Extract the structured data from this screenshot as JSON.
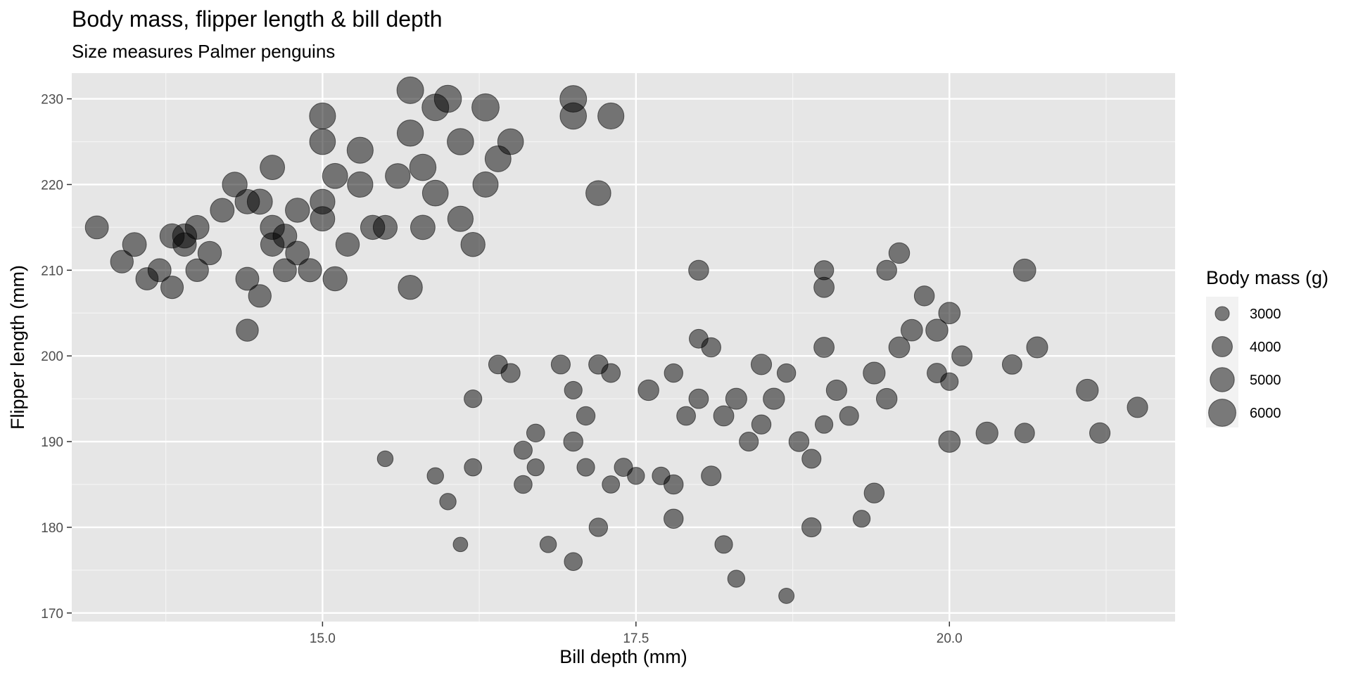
{
  "chart_data": {
    "type": "scatter",
    "title": "Body mass, flipper length & bill depth",
    "subtitle": "Size measures Palmer penguins",
    "xlabel": "Bill depth (mm)",
    "ylabel": "Flipper length (mm)",
    "xlim": [
      13.0,
      21.8
    ],
    "ylim": [
      169,
      233
    ],
    "x_ticks": [
      15.0,
      17.5,
      20.0
    ],
    "x_tick_labels": [
      "15.0",
      "17.5",
      "20.0"
    ],
    "y_ticks": [
      170,
      180,
      190,
      200,
      210,
      220,
      230
    ],
    "y_tick_labels": [
      "170",
      "180",
      "190",
      "200",
      "210",
      "220",
      "230"
    ],
    "grid": true,
    "point_color": "#000000",
    "point_alpha": 0.5,
    "panel_background": "#e6e6e6",
    "size_legend": {
      "title": "Body mass (g)",
      "placement": "right",
      "breaks": [
        3000,
        4000,
        5000,
        6000
      ],
      "labels": [
        "3000",
        "4000",
        "5000",
        "6000"
      ]
    },
    "size_range_mass": [
      2700,
      6300
    ],
    "points": [
      [
        13.2,
        215,
        4700
      ],
      [
        13.4,
        211,
        4600
      ],
      [
        13.5,
        213,
        4900
      ],
      [
        13.6,
        209,
        4500
      ],
      [
        13.7,
        210,
        4700
      ],
      [
        13.8,
        208,
        4550
      ],
      [
        13.9,
        214,
        5000
      ],
      [
        13.9,
        213,
        4800
      ],
      [
        14.0,
        215,
        4900
      ],
      [
        14.1,
        212,
        4800
      ],
      [
        14.0,
        210,
        4600
      ],
      [
        14.2,
        217,
        4900
      ],
      [
        14.3,
        220,
        5200
      ],
      [
        14.4,
        218,
        5100
      ],
      [
        14.4,
        209,
        4700
      ],
      [
        14.5,
        218,
        5300
      ],
      [
        14.6,
        215,
        5000
      ],
      [
        14.6,
        222,
        5100
      ],
      [
        14.7,
        210,
        4700
      ],
      [
        14.8,
        212,
        4900
      ],
      [
        14.9,
        210,
        4750
      ],
      [
        15.0,
        216,
        5100
      ],
      [
        15.0,
        218,
        5200
      ],
      [
        15.0,
        228,
        5600
      ],
      [
        15.1,
        221,
        5300
      ],
      [
        15.1,
        209,
        5000
      ],
      [
        15.2,
        213,
        4800
      ],
      [
        15.3,
        220,
        5400
      ],
      [
        15.4,
        215,
        5000
      ],
      [
        15.5,
        215,
        4950
      ],
      [
        15.6,
        221,
        5200
      ],
      [
        15.7,
        231,
        5800
      ],
      [
        15.7,
        226,
        5650
      ],
      [
        15.8,
        222,
        5700
      ],
      [
        15.8,
        215,
        5100
      ],
      [
        15.9,
        219,
        5500
      ],
      [
        15.9,
        229,
        5800
      ],
      [
        16.0,
        230,
        5950
      ],
      [
        16.1,
        225,
        5700
      ],
      [
        16.1,
        216,
        5400
      ],
      [
        16.2,
        213,
        5000
      ],
      [
        16.3,
        229,
        6000
      ],
      [
        16.3,
        220,
        5350
      ],
      [
        16.4,
        223,
        5550
      ],
      [
        16.5,
        225,
        5500
      ],
      [
        17.0,
        230,
        5800
      ],
      [
        17.0,
        228,
        5700
      ],
      [
        17.2,
        219,
        5250
      ],
      [
        17.3,
        228,
        5600
      ],
      [
        15.7,
        208,
        5000
      ],
      [
        14.5,
        207,
        4600
      ],
      [
        14.4,
        203,
        4450
      ],
      [
        15.0,
        225,
        5500
      ],
      [
        14.8,
        217,
        5000
      ],
      [
        15.3,
        224,
        5600
      ],
      [
        14.6,
        213,
        4800
      ],
      [
        13.8,
        214,
        5050
      ],
      [
        14.7,
        214,
        4900
      ],
      [
        15.5,
        188,
        3200
      ],
      [
        15.9,
        186,
        3300
      ],
      [
        16.0,
        183,
        3300
      ],
      [
        16.1,
        178,
        3050
      ],
      [
        16.2,
        187,
        3450
      ],
      [
        16.2,
        195,
        3500
      ],
      [
        16.4,
        199,
        3700
      ],
      [
        16.5,
        198,
        3750
      ],
      [
        16.6,
        189,
        3600
      ],
      [
        16.6,
        185,
        3550
      ],
      [
        16.7,
        191,
        3550
      ],
      [
        16.7,
        187,
        3400
      ],
      [
        16.8,
        178,
        3300
      ],
      [
        16.9,
        199,
        3750
      ],
      [
        17.0,
        196,
        3500
      ],
      [
        17.0,
        190,
        3800
      ],
      [
        17.1,
        193,
        3650
      ],
      [
        17.1,
        187,
        3500
      ],
      [
        17.2,
        199,
        3800
      ],
      [
        17.2,
        180,
        3650
      ],
      [
        17.3,
        198,
        3700
      ],
      [
        17.3,
        185,
        3450
      ],
      [
        17.4,
        187,
        3600
      ],
      [
        17.5,
        186,
        3400
      ],
      [
        17.6,
        196,
        4100
      ],
      [
        17.7,
        186,
        3500
      ],
      [
        17.8,
        198,
        3650
      ],
      [
        17.8,
        185,
        3800
      ],
      [
        17.9,
        193,
        3700
      ],
      [
        18.0,
        195,
        3850
      ],
      [
        18.1,
        201,
        3800
      ],
      [
        18.1,
        186,
        3900
      ],
      [
        18.2,
        193,
        4000
      ],
      [
        18.3,
        195,
        4200
      ],
      [
        18.4,
        190,
        3750
      ],
      [
        18.5,
        199,
        4050
      ],
      [
        18.5,
        192,
        3800
      ],
      [
        18.6,
        195,
        4250
      ],
      [
        18.7,
        198,
        3650
      ],
      [
        18.8,
        190,
        3950
      ],
      [
        18.9,
        188,
        3750
      ],
      [
        19.0,
        201,
        4000
      ],
      [
        19.0,
        192,
        3500
      ],
      [
        19.1,
        196,
        4050
      ],
      [
        19.2,
        193,
        3750
      ],
      [
        19.3,
        181,
        3400
      ],
      [
        19.4,
        184,
        3950
      ],
      [
        19.4,
        198,
        4400
      ],
      [
        19.5,
        195,
        4100
      ],
      [
        19.6,
        201,
        4150
      ],
      [
        19.7,
        203,
        4300
      ],
      [
        19.8,
        207,
        3950
      ],
      [
        19.9,
        203,
        4450
      ],
      [
        20.0,
        205,
        4300
      ],
      [
        20.0,
        197,
        3500
      ],
      [
        20.1,
        200,
        4000
      ],
      [
        20.5,
        199,
        3850
      ],
      [
        20.6,
        210,
        4500
      ],
      [
        20.6,
        191,
        3900
      ],
      [
        20.7,
        201,
        4200
      ],
      [
        21.1,
        196,
        4400
      ],
      [
        21.2,
        191,
        4050
      ],
      [
        21.5,
        194,
        4050
      ],
      [
        20.3,
        191,
        4400
      ],
      [
        20.0,
        190,
        4300
      ],
      [
        19.9,
        198,
        3850
      ],
      [
        18.7,
        172,
        3150
      ],
      [
        18.3,
        174,
        3400
      ],
      [
        17.8,
        181,
        3800
      ],
      [
        17.0,
        176,
        3550
      ],
      [
        18.0,
        210,
        3950
      ],
      [
        18.0,
        202,
        3700
      ],
      [
        19.0,
        210,
        3800
      ],
      [
        19.5,
        210,
        3950
      ],
      [
        19.6,
        212,
        4100
      ],
      [
        19.0,
        208,
        4000
      ],
      [
        18.2,
        178,
        3500
      ],
      [
        18.9,
        180,
        3800
      ]
    ]
  }
}
